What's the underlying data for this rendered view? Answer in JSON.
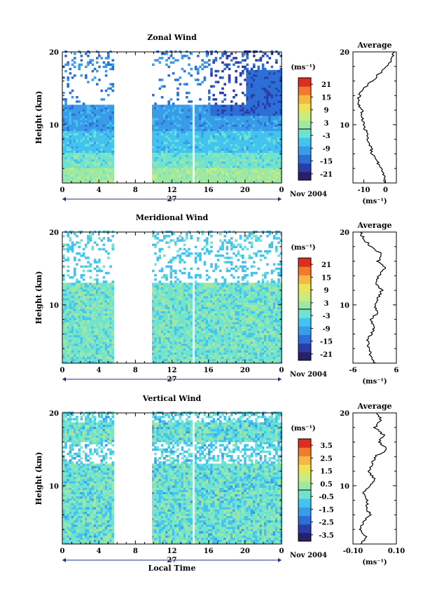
{
  "chart_data": [
    {
      "type": "heatmap",
      "title": "Zonal Wind",
      "ylabel": "Height (km)",
      "xticks": [
        "0",
        "4",
        "8",
        "12",
        "16",
        "20",
        "0"
      ],
      "yticks": [
        "10",
        "20"
      ],
      "xlim": [
        0,
        24
      ],
      "ylim": [
        2,
        20
      ],
      "date_label": "27",
      "date_suffix": "Nov 2004",
      "colorbar": {
        "unit": "(ms⁻¹)",
        "ticks": [
          "21",
          "15",
          "9",
          "3",
          "-3",
          "-9",
          "-15",
          "-21"
        ],
        "min": -24,
        "max": 24
      },
      "data_gap_hours": [
        5.5,
        9.7
      ],
      "profile": {
        "title": "Average",
        "xticks": [
          "-10",
          "0"
        ],
        "xlim": [
          -15,
          5
        ],
        "xunit": "(ms⁻¹)",
        "heights": [
          2,
          3,
          4,
          5,
          6,
          7,
          8,
          9,
          10,
          11,
          12,
          13,
          14,
          15,
          16,
          17,
          18,
          19,
          20
        ],
        "values": [
          0,
          -1,
          -2,
          -4,
          -6,
          -7,
          -8,
          -9,
          -10,
          -11,
          -11,
          -13,
          -12,
          -10,
          -6,
          -3,
          1,
          3,
          4
        ]
      }
    },
    {
      "type": "heatmap",
      "title": "Meridional Wind",
      "ylabel": "Height (km)",
      "xticks": [
        "0",
        "4",
        "8",
        "12",
        "16",
        "20",
        "0"
      ],
      "yticks": [
        "10",
        "20"
      ],
      "xlim": [
        0,
        24
      ],
      "ylim": [
        2,
        20
      ],
      "date_label": "27",
      "date_suffix": "Nov 2004",
      "colorbar": {
        "unit": "(ms⁻¹)",
        "ticks": [
          "21",
          "15",
          "9",
          "3",
          "-3",
          "-9",
          "-15",
          "-21"
        ],
        "min": -24,
        "max": 24
      },
      "data_gap_hours": [
        5.5,
        9.7
      ],
      "profile": {
        "title": "Average",
        "xticks": [
          "-6",
          "6"
        ],
        "xlim": [
          -6,
          6
        ],
        "xunit": "(ms⁻¹)",
        "heights": [
          2,
          3,
          4,
          5,
          6,
          7,
          8,
          9,
          10,
          11,
          12,
          13,
          14,
          15,
          16,
          17,
          18,
          19,
          20
        ],
        "values": [
          0,
          -1,
          -1.5,
          -2,
          -1,
          0,
          -1,
          1,
          0,
          1,
          2,
          0,
          1,
          3,
          1,
          2,
          -1,
          -3,
          -4
        ]
      }
    },
    {
      "type": "heatmap",
      "title": "Vertical Wind",
      "ylabel": "Height (km)",
      "xticks": [
        "0",
        "4",
        "8",
        "12",
        "16",
        "20",
        "0"
      ],
      "yticks": [
        "10",
        "20"
      ],
      "xlim": [
        0,
        24
      ],
      "ylim": [
        2,
        20
      ],
      "date_label": "27",
      "date_suffix": "Nov 2004",
      "xlabel": "Local Time",
      "colorbar": {
        "unit": "(ms⁻¹)",
        "ticks": [
          "3.5",
          "2.5",
          "1.5",
          "0.5",
          "-0.5",
          "-1.5",
          "-2.5",
          "-3.5"
        ],
        "min": -4,
        "max": 4
      },
      "data_gap_hours": [
        5.5,
        9.7
      ],
      "profile": {
        "title": "Average",
        "xticks": [
          "-0.10",
          "0.10"
        ],
        "xlim": [
          -0.1,
          0.1
        ],
        "xunit": "(ms⁻¹)",
        "heights": [
          2,
          3,
          4,
          5,
          6,
          7,
          8,
          9,
          10,
          11,
          12,
          13,
          14,
          15,
          16,
          17,
          18,
          19,
          20
        ],
        "values": [
          -0.06,
          -0.04,
          -0.07,
          -0.05,
          -0.02,
          -0.04,
          -0.03,
          -0.05,
          -0.02,
          0.0,
          -0.03,
          -0.01,
          0.0,
          0.06,
          0.02,
          0.04,
          0.0,
          0.03,
          0.01
        ]
      }
    }
  ],
  "colors": {
    "scale": [
      "#27206a",
      "#2b3ea8",
      "#2c6fd6",
      "#3a9be8",
      "#43c3f0",
      "#6fe3d0",
      "#9ee8a4",
      "#c9ec7e",
      "#ece35b",
      "#f5b842",
      "#f07a2e",
      "#dd2f20"
    ]
  }
}
